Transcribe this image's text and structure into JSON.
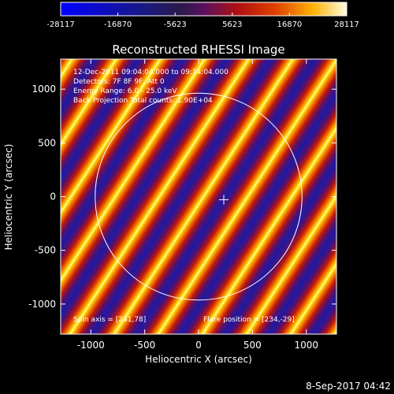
{
  "plot": {
    "title": "Reconstructed RHESSI Image",
    "x_axis_label": "Heliocentric X (arcsec)",
    "y_axis_label": "Heliocentric Y (arcsec)",
    "x_ticks": [
      {
        "value": -1000,
        "label": "-1000"
      },
      {
        "value": -500,
        "label": "-500"
      },
      {
        "value": 0,
        "label": "0"
      },
      {
        "value": 500,
        "label": "500"
      },
      {
        "value": 1000,
        "label": "1000"
      }
    ],
    "y_ticks": [
      {
        "value": 1000,
        "label": "1000"
      },
      {
        "value": 500,
        "label": "500"
      },
      {
        "value": 0,
        "label": "0"
      },
      {
        "value": -500,
        "label": "-500"
      },
      {
        "value": -1000,
        "label": "-1000"
      }
    ],
    "x_range": [
      -1280,
      1280
    ],
    "y_range": [
      -1280,
      1280
    ],
    "solar_disk_radius_arcsec": 960,
    "flare_position_arcsec": [
      234,
      -29
    ],
    "spin_axis_arcsec": [
      241,
      78
    ]
  },
  "colorbar": {
    "ticks": [
      {
        "value": -28117,
        "label": "-28117"
      },
      {
        "value": -16870,
        "label": "-16870"
      },
      {
        "value": -5623,
        "label": "-5623"
      },
      {
        "value": 5623,
        "label": "5623"
      },
      {
        "value": 16870,
        "label": "16870"
      },
      {
        "value": 28117,
        "label": "28117"
      }
    ],
    "min": -28117,
    "max": 28117
  },
  "annotations": {
    "time_range": "12-Dec-2011 09:04:04.000 to 09:14:04.000",
    "detectors": "Detectors: 7F 8F 9F, Att 0",
    "energy_range": "Energy Range: 6.0 - 25.0 keV",
    "method": "Back Projection   Total counts: 1.90E+04",
    "spin_axis": "Spin axis = [241,78]",
    "flare_position": "Flare position = [234,-29]"
  },
  "footer": {
    "timestamp": "8-Sep-2017 04:42"
  },
  "colors": {
    "background": "#000000",
    "foreground": "#ffffff"
  }
}
